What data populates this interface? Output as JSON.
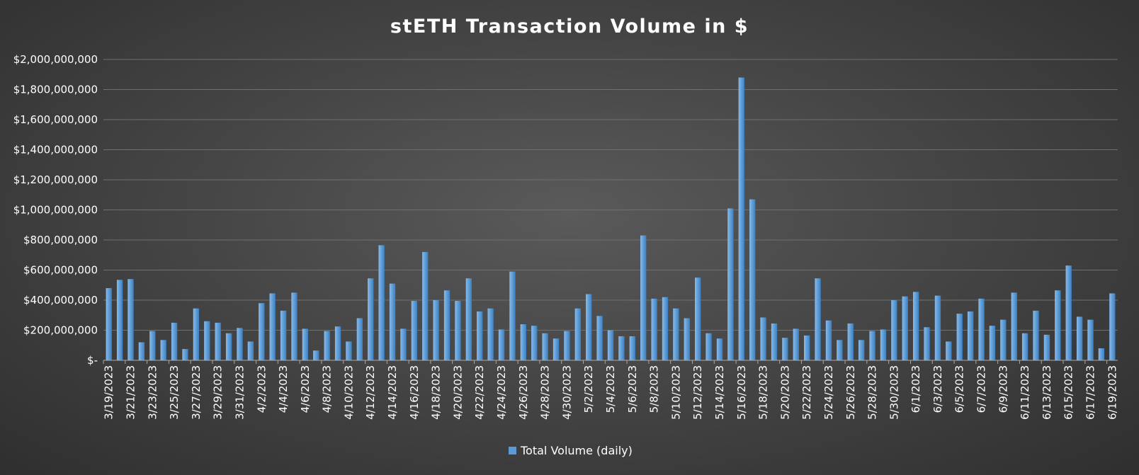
{
  "chart_data": {
    "type": "bar",
    "title": "stETH Transaction Volume in $",
    "xlabel": "",
    "ylabel": "",
    "ylim": [
      0,
      2000000000
    ],
    "y_tick_values": [
      0,
      200000000,
      400000000,
      600000000,
      800000000,
      1000000000,
      1200000000,
      1400000000,
      1600000000,
      1800000000,
      2000000000
    ],
    "y_tick_labels": [
      "$-",
      "$200,000,000",
      "$400,000,000",
      "$600,000,000",
      "$800,000,000",
      "$1,000,000,000",
      "$1,200,000,000",
      "$1,400,000,000",
      "$1,600,000,000",
      "$1,800,000,000",
      "$2,000,000,000"
    ],
    "x_tick_labels": [
      "3/19/2023",
      "3/21/2023",
      "3/23/2023",
      "3/25/2023",
      "3/27/2023",
      "3/29/2023",
      "3/31/2023",
      "4/2/2023",
      "4/4/2023",
      "4/6/2023",
      "4/8/2023",
      "4/10/2023",
      "4/12/2023",
      "4/14/2023",
      "4/16/2023",
      "4/18/2023",
      "4/20/2023",
      "4/22/2023",
      "4/24/2023",
      "4/26/2023",
      "4/28/2023",
      "4/30/2023",
      "5/2/2023",
      "5/4/2023",
      "5/6/2023",
      "5/8/2023",
      "5/10/2023",
      "5/12/2023",
      "5/14/2023",
      "5/16/2023",
      "5/18/2023",
      "5/20/2023",
      "5/22/2023",
      "5/24/2023",
      "5/26/2023",
      "5/28/2023",
      "5/30/2023",
      "6/1/2023",
      "6/3/2023",
      "6/5/2023",
      "6/7/2023",
      "6/9/2023",
      "6/11/2023",
      "6/13/2023",
      "6/15/2023",
      "6/17/2023",
      "6/19/2023"
    ],
    "grid": true,
    "legend_position": "bottom",
    "bar_color": "#5b9bd5",
    "categories": [
      "3/19/2023",
      "3/20/2023",
      "3/21/2023",
      "3/22/2023",
      "3/23/2023",
      "3/24/2023",
      "3/25/2023",
      "3/26/2023",
      "3/27/2023",
      "3/28/2023",
      "3/29/2023",
      "3/30/2023",
      "3/31/2023",
      "4/1/2023",
      "4/2/2023",
      "4/3/2023",
      "4/4/2023",
      "4/5/2023",
      "4/6/2023",
      "4/7/2023",
      "4/8/2023",
      "4/9/2023",
      "4/10/2023",
      "4/11/2023",
      "4/12/2023",
      "4/13/2023",
      "4/14/2023",
      "4/15/2023",
      "4/16/2023",
      "4/17/2023",
      "4/18/2023",
      "4/19/2023",
      "4/20/2023",
      "4/21/2023",
      "4/22/2023",
      "4/23/2023",
      "4/24/2023",
      "4/25/2023",
      "4/26/2023",
      "4/27/2023",
      "4/28/2023",
      "4/29/2023",
      "4/30/2023",
      "5/1/2023",
      "5/2/2023",
      "5/3/2023",
      "5/4/2023",
      "5/5/2023",
      "5/6/2023",
      "5/7/2023",
      "5/8/2023",
      "5/9/2023",
      "5/10/2023",
      "5/11/2023",
      "5/12/2023",
      "5/13/2023",
      "5/14/2023",
      "5/15/2023",
      "5/16/2023",
      "5/17/2023",
      "5/18/2023",
      "5/19/2023",
      "5/20/2023",
      "5/21/2023",
      "5/22/2023",
      "5/23/2023",
      "5/24/2023",
      "5/25/2023",
      "5/26/2023",
      "5/27/2023",
      "5/28/2023",
      "5/29/2023",
      "5/30/2023",
      "5/31/2023",
      "6/1/2023",
      "6/2/2023",
      "6/3/2023",
      "6/4/2023",
      "6/5/2023",
      "6/6/2023",
      "6/7/2023",
      "6/8/2023",
      "6/9/2023",
      "6/10/2023",
      "6/11/2023",
      "6/12/2023",
      "6/13/2023",
      "6/14/2023",
      "6/15/2023",
      "6/16/2023",
      "6/17/2023",
      "6/18/2023",
      "6/19/2023"
    ],
    "series": [
      {
        "name": "Total Volume (daily)",
        "values": [
          480000000,
          535000000,
          540000000,
          120000000,
          195000000,
          135000000,
          250000000,
          75000000,
          345000000,
          260000000,
          250000000,
          180000000,
          215000000,
          125000000,
          380000000,
          445000000,
          330000000,
          450000000,
          210000000,
          65000000,
          195000000,
          225000000,
          125000000,
          280000000,
          545000000,
          765000000,
          510000000,
          210000000,
          395000000,
          720000000,
          400000000,
          465000000,
          395000000,
          545000000,
          325000000,
          345000000,
          205000000,
          590000000,
          240000000,
          230000000,
          180000000,
          145000000,
          195000000,
          345000000,
          440000000,
          295000000,
          200000000,
          160000000,
          160000000,
          830000000,
          410000000,
          420000000,
          345000000,
          280000000,
          550000000,
          180000000,
          145000000,
          1010000000,
          1880000000,
          1070000000,
          285000000,
          245000000,
          150000000,
          210000000,
          165000000,
          545000000,
          265000000,
          135000000,
          245000000,
          135000000,
          195000000,
          205000000,
          400000000,
          425000000,
          455000000,
          220000000,
          430000000,
          125000000,
          310000000,
          325000000,
          410000000,
          230000000,
          270000000,
          450000000,
          180000000,
          330000000,
          170000000,
          465000000,
          630000000,
          290000000,
          270000000,
          80000000,
          445000000
        ]
      }
    ]
  }
}
